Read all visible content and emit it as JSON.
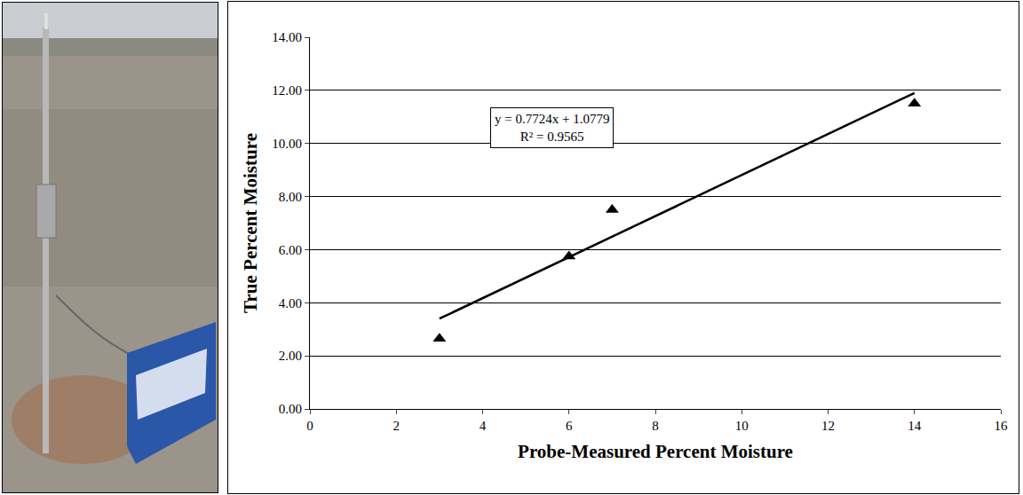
{
  "chart_data": {
    "type": "scatter",
    "x_label": "Probe-Measured Percent Moisture",
    "y_label": "True Percent Moisture",
    "xlim": [
      0,
      16
    ],
    "xticks": [
      0,
      2,
      4,
      6,
      8,
      10,
      12,
      14,
      16
    ],
    "ylim": [
      0,
      14
    ],
    "yticks": [
      {
        "value": 0,
        "label": "0.00"
      },
      {
        "value": 2,
        "label": "2.00"
      },
      {
        "value": 4,
        "label": "4.00"
      },
      {
        "value": 6,
        "label": "6.00"
      },
      {
        "value": 8,
        "label": "8.00"
      },
      {
        "value": 10,
        "label": "10.00"
      },
      {
        "value": 12,
        "label": "12.00"
      },
      {
        "value": 14,
        "label": "14.00"
      }
    ],
    "grid": "y",
    "annotations": [
      "y = 0.7724x + 1.0779",
      "R² = 0.9565"
    ],
    "series": [
      {
        "type": "scatter",
        "marker": "triangle-up",
        "color": "#000000",
        "x": [
          3,
          6,
          7,
          14
        ],
        "values": [
          2.65,
          5.75,
          7.5,
          11.5
        ]
      },
      {
        "type": "line",
        "line_style": "solid",
        "color": "#000000",
        "x": [
          3,
          14
        ],
        "values": [
          3.4,
          11.9
        ]
      }
    ]
  }
}
